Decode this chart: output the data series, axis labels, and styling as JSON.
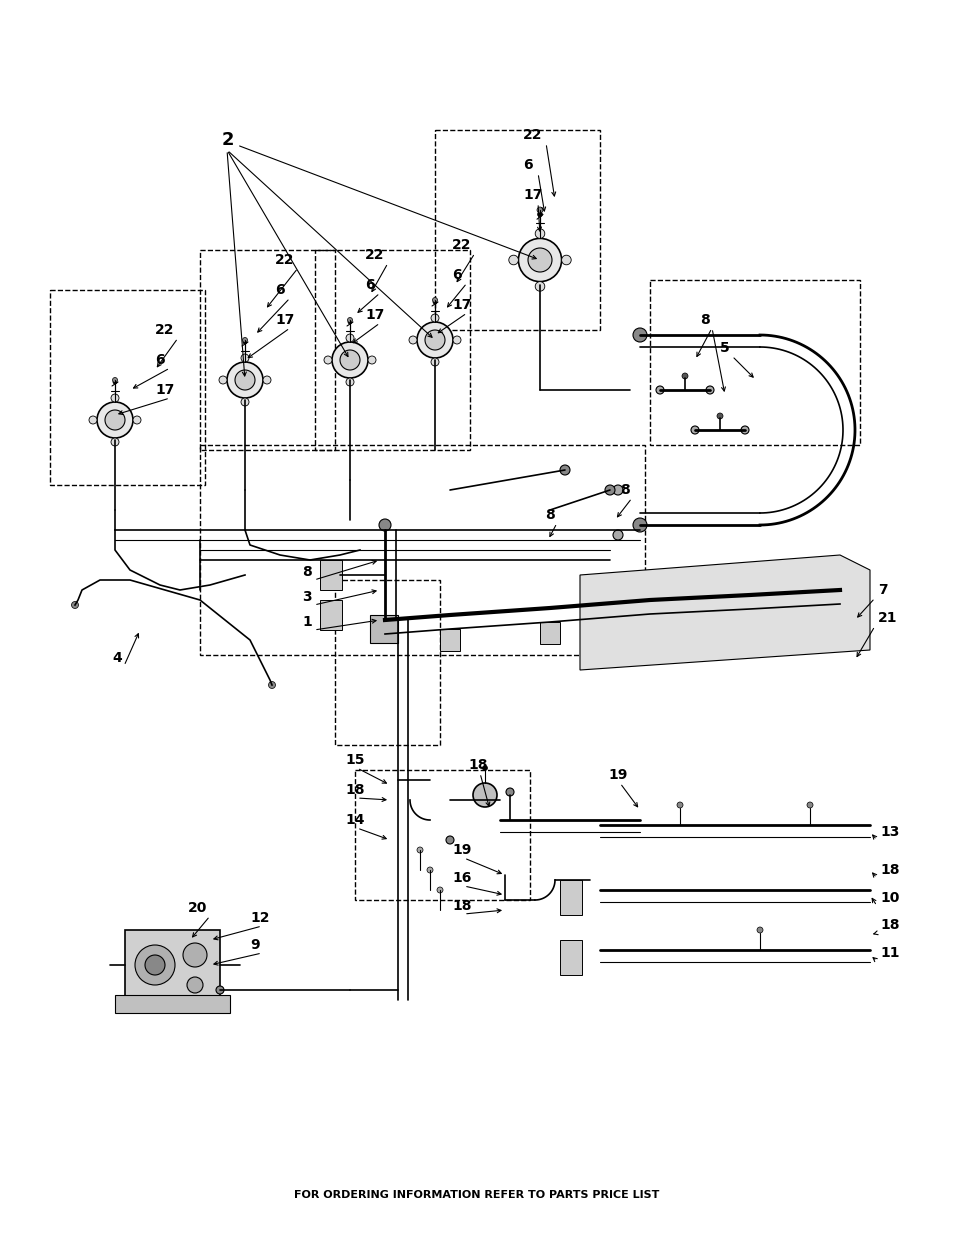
{
  "background_color": "#ffffff",
  "footer_text": "FOR ORDERING INFORMATION REFER TO PARTS PRICE LIST",
  "footer_fontsize": 8,
  "fig_width": 9.54,
  "fig_height": 12.35,
  "dpi": 100
}
